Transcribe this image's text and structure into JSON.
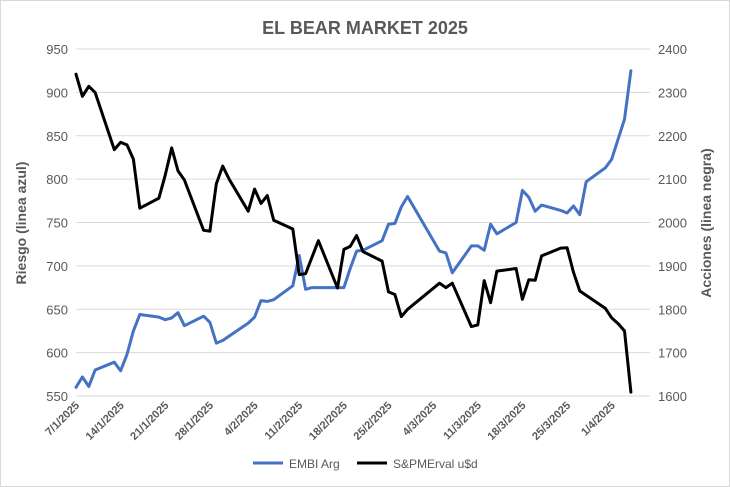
{
  "chart_data": {
    "type": "line",
    "title": "EL BEAR MARKET 2025",
    "ylabel": "Riesgo (linea azul)",
    "y2label": "Acciones (linea negra)",
    "ylim": [
      550,
      950
    ],
    "y2lim": [
      1600,
      2400
    ],
    "yticks": [
      550,
      600,
      650,
      700,
      750,
      800,
      850,
      900,
      950
    ],
    "y2ticks": [
      1600,
      1700,
      1800,
      1900,
      2000,
      2100,
      2200,
      2300,
      2400
    ],
    "xlim": [
      "2025-01-07",
      "2025-04-07"
    ],
    "xticks": [
      {
        "date": "2025-01-07",
        "label": "7/1/2025"
      },
      {
        "date": "2025-01-14",
        "label": "14/1/2025"
      },
      {
        "date": "2025-01-21",
        "label": "21/1/2025"
      },
      {
        "date": "2025-01-28",
        "label": "28/1/2025"
      },
      {
        "date": "2025-02-04",
        "label": "4/2/2025"
      },
      {
        "date": "2025-02-11",
        "label": "11/2/2025"
      },
      {
        "date": "2025-02-18",
        "label": "18/2/2025"
      },
      {
        "date": "2025-02-25",
        "label": "25/2/2025"
      },
      {
        "date": "2025-03-04",
        "label": "4/3/2025"
      },
      {
        "date": "2025-03-11",
        "label": "11/3/2025"
      },
      {
        "date": "2025-03-18",
        "label": "18/3/2025"
      },
      {
        "date": "2025-03-25",
        "label": "25/3/2025"
      },
      {
        "date": "2025-04-01",
        "label": "1/4/2025"
      }
    ],
    "grid": true,
    "legend_position": "bottom",
    "series": [
      {
        "name": "EMBI Arg",
        "axis": "left",
        "color": "#4472c4",
        "points": [
          [
            "2025-01-07",
            560
          ],
          [
            "2025-01-08",
            572
          ],
          [
            "2025-01-09",
            561
          ],
          [
            "2025-01-10",
            580
          ],
          [
            "2025-01-13",
            589
          ],
          [
            "2025-01-14",
            579
          ],
          [
            "2025-01-15",
            598
          ],
          [
            "2025-01-16",
            625
          ],
          [
            "2025-01-17",
            644
          ],
          [
            "2025-01-20",
            641
          ],
          [
            "2025-01-21",
            638
          ],
          [
            "2025-01-22",
            640
          ],
          [
            "2025-01-23",
            646
          ],
          [
            "2025-01-24",
            631
          ],
          [
            "2025-01-27",
            642
          ],
          [
            "2025-01-28",
            635
          ],
          [
            "2025-01-29",
            611
          ],
          [
            "2025-01-30",
            614
          ],
          [
            "2025-01-31",
            619
          ],
          [
            "2025-02-03",
            634
          ],
          [
            "2025-02-04",
            641
          ],
          [
            "2025-02-05",
            660
          ],
          [
            "2025-02-06",
            659
          ],
          [
            "2025-02-07",
            661
          ],
          [
            "2025-02-10",
            677
          ],
          [
            "2025-02-11",
            712
          ],
          [
            "2025-02-12",
            673
          ],
          [
            "2025-02-13",
            675
          ],
          [
            "2025-02-14",
            675
          ],
          [
            "2025-02-17",
            675
          ],
          [
            "2025-02-18",
            675
          ],
          [
            "2025-02-19",
            697
          ],
          [
            "2025-02-20",
            717
          ],
          [
            "2025-02-21",
            718
          ],
          [
            "2025-02-24",
            729
          ],
          [
            "2025-02-25",
            748
          ],
          [
            "2025-02-26",
            749
          ],
          [
            "2025-02-27",
            768
          ],
          [
            "2025-02-28",
            780
          ],
          [
            "2025-03-05",
            717
          ],
          [
            "2025-03-06",
            715
          ],
          [
            "2025-03-07",
            692
          ],
          [
            "2025-03-10",
            723
          ],
          [
            "2025-03-11",
            723
          ],
          [
            "2025-03-12",
            718
          ],
          [
            "2025-03-13",
            748
          ],
          [
            "2025-03-14",
            737
          ],
          [
            "2025-03-17",
            750
          ],
          [
            "2025-03-18",
            787
          ],
          [
            "2025-03-19",
            779
          ],
          [
            "2025-03-20",
            763
          ],
          [
            "2025-03-21",
            770
          ],
          [
            "2025-03-24",
            764
          ],
          [
            "2025-03-25",
            761
          ],
          [
            "2025-03-26",
            769
          ],
          [
            "2025-03-27",
            759
          ],
          [
            "2025-03-28",
            797
          ],
          [
            "2025-03-31",
            813
          ],
          [
            "2025-04-01",
            823
          ],
          [
            "2025-04-02",
            846
          ],
          [
            "2025-04-03",
            869
          ],
          [
            "2025-04-04",
            925
          ]
        ]
      },
      {
        "name": "S&PMErval u$d",
        "axis": "right",
        "color": "#000000",
        "points": [
          [
            "2025-01-07",
            2342
          ],
          [
            "2025-01-08",
            2291
          ],
          [
            "2025-01-09",
            2314
          ],
          [
            "2025-01-10",
            2300
          ],
          [
            "2025-01-13",
            2168
          ],
          [
            "2025-01-14",
            2185
          ],
          [
            "2025-01-15",
            2179
          ],
          [
            "2025-01-16",
            2146
          ],
          [
            "2025-01-17",
            2033
          ],
          [
            "2025-01-20",
            2056
          ],
          [
            "2025-01-21",
            2110
          ],
          [
            "2025-01-22",
            2172
          ],
          [
            "2025-01-23",
            2119
          ],
          [
            "2025-01-24",
            2098
          ],
          [
            "2025-01-27",
            1982
          ],
          [
            "2025-01-28",
            1980
          ],
          [
            "2025-01-29",
            2089
          ],
          [
            "2025-01-30",
            2130
          ],
          [
            "2025-01-31",
            2100
          ],
          [
            "2025-02-03",
            2026
          ],
          [
            "2025-02-04",
            2077
          ],
          [
            "2025-02-05",
            2044
          ],
          [
            "2025-02-06",
            2062
          ],
          [
            "2025-02-07",
            2005
          ],
          [
            "2025-02-10",
            1985
          ],
          [
            "2025-02-11",
            1880
          ],
          [
            "2025-02-12",
            1882
          ],
          [
            "2025-02-14",
            1958
          ],
          [
            "2025-02-17",
            1849
          ],
          [
            "2025-02-18",
            1938
          ],
          [
            "2025-02-19",
            1945
          ],
          [
            "2025-02-20",
            1970
          ],
          [
            "2025-02-21",
            1933
          ],
          [
            "2025-02-24",
            1911
          ],
          [
            "2025-02-25",
            1840
          ],
          [
            "2025-02-26",
            1834
          ],
          [
            "2025-02-27",
            1783
          ],
          [
            "2025-02-28",
            1800
          ],
          [
            "2025-03-05",
            1860
          ],
          [
            "2025-03-06",
            1850
          ],
          [
            "2025-03-07",
            1860
          ],
          [
            "2025-03-10",
            1760
          ],
          [
            "2025-03-11",
            1764
          ],
          [
            "2025-03-12",
            1866
          ],
          [
            "2025-03-13",
            1815
          ],
          [
            "2025-03-14",
            1888
          ],
          [
            "2025-03-17",
            1894
          ],
          [
            "2025-03-18",
            1823
          ],
          [
            "2025-03-19",
            1868
          ],
          [
            "2025-03-20",
            1867
          ],
          [
            "2025-03-21",
            1923
          ],
          [
            "2025-03-24",
            1941
          ],
          [
            "2025-03-25",
            1942
          ],
          [
            "2025-03-26",
            1885
          ],
          [
            "2025-03-27",
            1842
          ],
          [
            "2025-03-31",
            1802
          ],
          [
            "2025-04-01",
            1780
          ],
          [
            "2025-04-02",
            1767
          ],
          [
            "2025-04-03",
            1750
          ],
          [
            "2025-04-04",
            1609
          ]
        ]
      }
    ]
  }
}
